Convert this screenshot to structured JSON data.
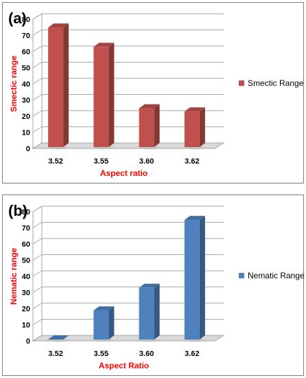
{
  "chart_data": [
    {
      "type": "bar",
      "panel_label": "(a)",
      "categories": [
        "3.52",
        "3.55",
        "3.60",
        "3.62"
      ],
      "series": [
        {
          "name": "Smectic Range",
          "values": [
            74,
            62,
            24,
            22
          ],
          "color": "#c0504d"
        }
      ],
      "xlabel": "Aspect ratio",
      "ylabel": "Smectic range",
      "ylim": [
        0,
        80
      ],
      "yticks": [
        "0",
        "10",
        "20",
        "30",
        "40",
        "50",
        "60",
        "70",
        "80"
      ],
      "grid": true,
      "legend_position": "right",
      "style": "3d"
    },
    {
      "type": "bar",
      "panel_label": "(b)",
      "categories": [
        "3.52",
        "3.55",
        "3.60",
        "3.62"
      ],
      "series": [
        {
          "name": "Nematic Range",
          "values": [
            0,
            18,
            32,
            74
          ],
          "color": "#4f81bd"
        }
      ],
      "xlabel": "Aspect Ratio",
      "ylabel": "Nematic range",
      "ylim": [
        0,
        80
      ],
      "yticks": [
        "0",
        "10",
        "20",
        "30",
        "40",
        "50",
        "60",
        "70",
        "80"
      ],
      "grid": true,
      "legend_position": "right",
      "style": "3d"
    }
  ],
  "colors": {
    "axis_title": "#ff0000",
    "grid": "#a6a6a6",
    "floor": "#d9d9d9"
  }
}
